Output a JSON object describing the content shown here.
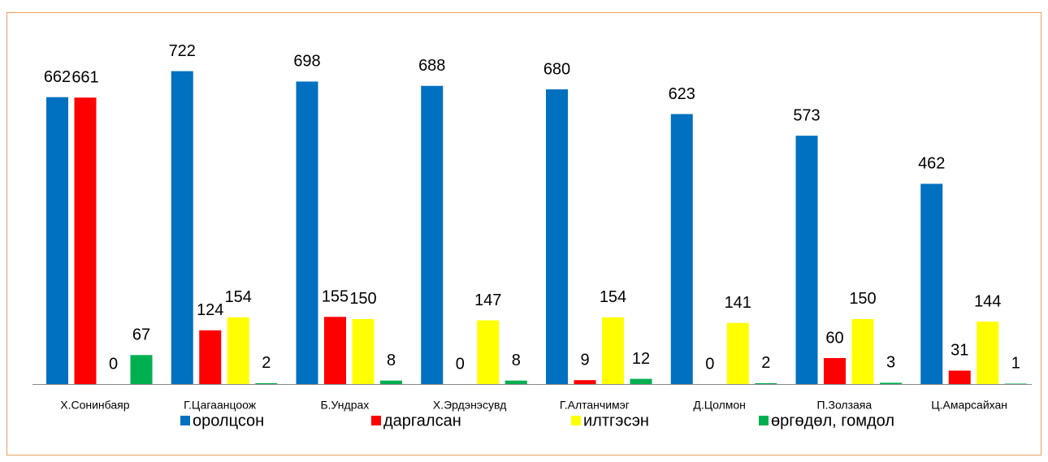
{
  "chart_data": {
    "type": "bar",
    "categories": [
      "Х.Сонинбаяр",
      "Г.Цагаанцоож",
      "Б.Ундрах",
      "Х.Эрдэнэсувд",
      "Г.Алтанчимэг",
      "Д.Цолмон",
      "П.Золзаяа",
      "Ц.Амарсайхан"
    ],
    "series": [
      {
        "name": "оролцсон",
        "color": "#0070c0",
        "values": [
          662,
          722,
          698,
          688,
          680,
          623,
          573,
          462
        ]
      },
      {
        "name": "даргалсан",
        "color": "#ff0000",
        "values": [
          661,
          124,
          155,
          0,
          9,
          0,
          60,
          31
        ]
      },
      {
        "name": "илтгэсэн",
        "color": "#ffff00",
        "values": [
          0,
          154,
          150,
          147,
          154,
          141,
          150,
          144
        ]
      },
      {
        "name": "өргөдөл, гомдол",
        "color": "#00b050",
        "values": [
          67,
          2,
          8,
          8,
          12,
          2,
          3,
          1
        ]
      }
    ],
    "ylim": [
      0,
      800
    ],
    "legend": "bottom"
  }
}
